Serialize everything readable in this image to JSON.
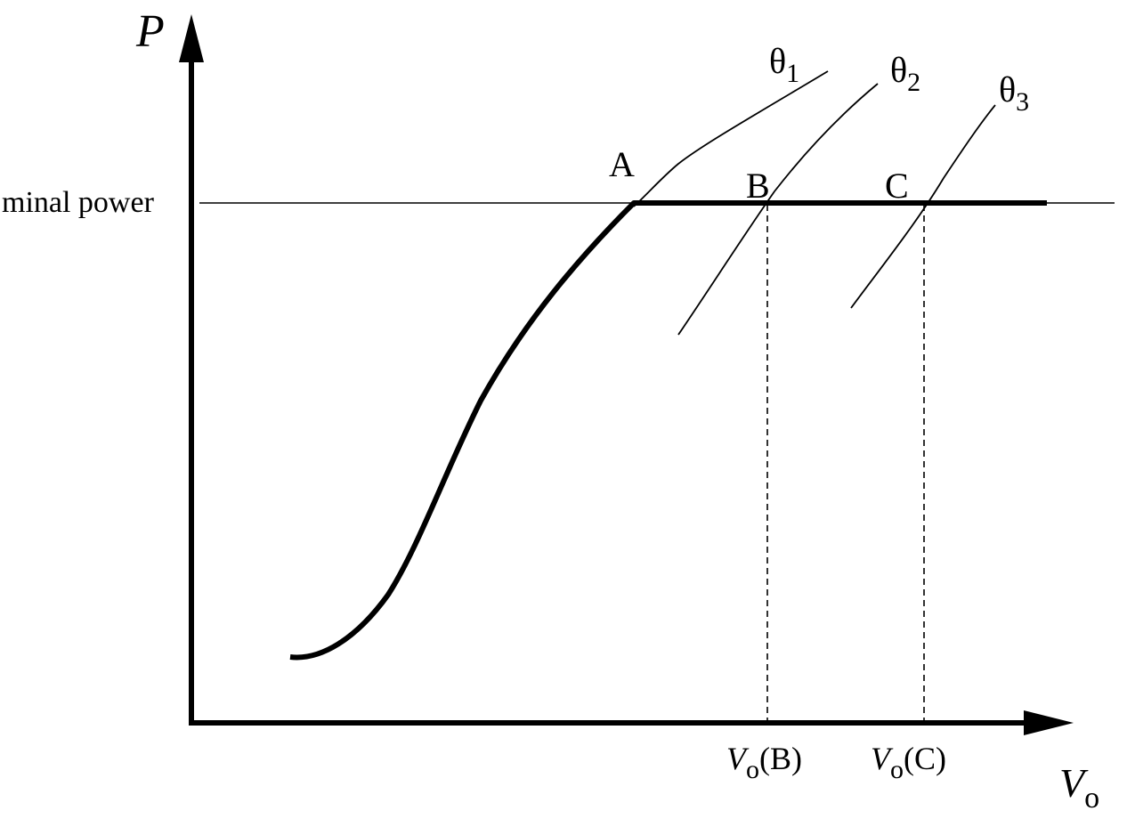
{
  "axes": {
    "y_label": "P",
    "x_label_main": "V",
    "x_label_sub": "o"
  },
  "nominal_power_label": "minal power",
  "points": {
    "a": "A",
    "b": "B",
    "c": "C"
  },
  "curves": {
    "theta1": {
      "symbol": "θ",
      "sub": "1"
    },
    "theta2": {
      "symbol": "θ",
      "sub": "2"
    },
    "theta3": {
      "symbol": "θ",
      "sub": "3"
    }
  },
  "x_ticks": {
    "b": {
      "main": "V",
      "sub": "o",
      "suffix": "(B)"
    },
    "c": {
      "main": "V",
      "sub": "o",
      "suffix": "(C)"
    }
  }
}
